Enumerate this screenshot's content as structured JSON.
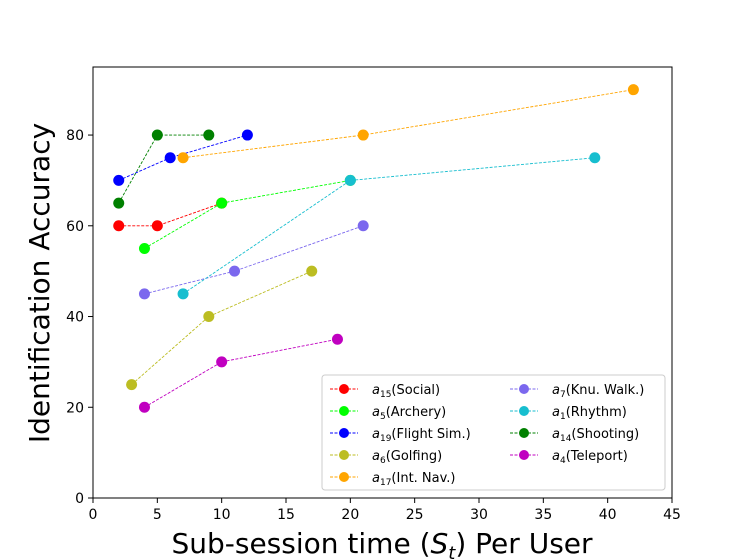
{
  "chart_data": {
    "type": "line",
    "title": "",
    "xlabel": "Sub-session time (S_t) Per User",
    "xlabel_parts": {
      "main": "Sub-session time (",
      "var": "S",
      "sub": "t",
      "tail": ") Per User"
    },
    "ylabel": "Identification Accuracy",
    "xlim": [
      0,
      45
    ],
    "ylim": [
      0,
      95
    ],
    "xticks": [
      0,
      5,
      10,
      15,
      20,
      25,
      30,
      35,
      40,
      45
    ],
    "yticks": [
      0,
      20,
      40,
      60,
      80
    ],
    "grid": false,
    "legend_position": "lower-right",
    "legend_columns": 2,
    "series": [
      {
        "name": "a15(Social)",
        "var": "a",
        "sub": "15",
        "label": "(Social)",
        "color": "#ff0000",
        "x": [
          2,
          5,
          10
        ],
        "y": [
          60,
          60,
          65
        ]
      },
      {
        "name": "a5(Archery)",
        "var": "a",
        "sub": "5",
        "label": "(Archery)",
        "color": "#00ff00",
        "x": [
          4,
          10,
          20
        ],
        "y": [
          55,
          65,
          70
        ]
      },
      {
        "name": "a19(Flight Sim.)",
        "var": "a",
        "sub": "19",
        "label": "(Flight Sim.)",
        "color": "#0000ff",
        "x": [
          2,
          6,
          12
        ],
        "y": [
          70,
          75,
          80
        ]
      },
      {
        "name": "a6(Golfing)",
        "var": "a",
        "sub": "6",
        "label": "(Golfing)",
        "color": "#bcbd22",
        "x": [
          3,
          9,
          17
        ],
        "y": [
          25,
          40,
          50
        ]
      },
      {
        "name": "a17(Int. Nav.)",
        "var": "a",
        "sub": "17",
        "label": "(Int. Nav.)",
        "color": "#ffa500",
        "x": [
          7,
          21,
          42
        ],
        "y": [
          75,
          80,
          90
        ]
      },
      {
        "name": "a7(Knu. Walk.)",
        "var": "a",
        "sub": "7",
        "label": "(Knu. Walk.)",
        "color": "#7b68ee",
        "x": [
          4,
          11,
          21
        ],
        "y": [
          45,
          50,
          60
        ]
      },
      {
        "name": "a1(Rhythm)",
        "var": "a",
        "sub": "1",
        "label": "(Rhythm)",
        "color": "#17becf",
        "x": [
          7,
          20,
          39
        ],
        "y": [
          45,
          70,
          75
        ]
      },
      {
        "name": "a14(Shooting)",
        "var": "a",
        "sub": "14",
        "label": "(Shooting)",
        "color": "#008000",
        "x": [
          2,
          5,
          9
        ],
        "y": [
          65,
          80,
          80
        ]
      },
      {
        "name": "a4(Teleport)",
        "var": "a",
        "sub": "4",
        "label": "(Teleport)",
        "color": "#c000c0",
        "x": [
          4,
          10,
          19
        ],
        "y": [
          20,
          30,
          35
        ]
      }
    ]
  }
}
